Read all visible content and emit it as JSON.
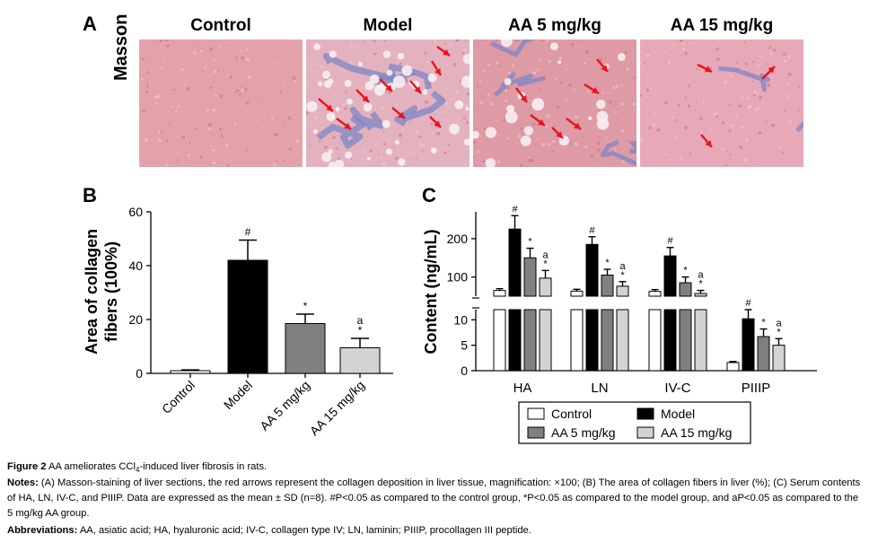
{
  "panel_a": {
    "letter": "A",
    "stain": "Masson",
    "columns": [
      "Control",
      "Model",
      "AA 5 mg/kg",
      "AA 15 mg/kg"
    ],
    "image_colors": [
      "#e3a2aa",
      "#e4b2be",
      "#de9aa5",
      "#e7a9b8"
    ],
    "fiber_color": "#7d85c6",
    "arrow_color": "#e8141c",
    "arrow_counts": [
      0,
      9,
      6,
      3
    ]
  },
  "chart_data": [
    {
      "id": "B",
      "type": "bar",
      "letter": "B",
      "ylabel_lines": [
        "Area of collagen",
        "fibers (100%)"
      ],
      "categories": [
        "Control",
        "Model",
        "AA 5 mg/kg",
        "AA 15 mg/kg"
      ],
      "values": [
        1,
        42,
        18.5,
        9.5
      ],
      "errors": [
        0.3,
        7.5,
        3.5,
        3.5
      ],
      "colors": [
        "#ffffff",
        "#000000",
        "#808080",
        "#d3d3d3"
      ],
      "annotations": [
        [],
        [
          "#"
        ],
        [
          "*"
        ],
        [
          "a",
          "*"
        ]
      ],
      "yticks": [
        0,
        20,
        40,
        60
      ],
      "ylim": [
        0,
        60
      ]
    },
    {
      "id": "C",
      "type": "bar",
      "letter": "C",
      "ylabel": "Content (ng/mL)",
      "categories": [
        "HA",
        "LN",
        "IV-C",
        "PIIIP"
      ],
      "y_axis_break": true,
      "upper_segment": {
        "yticks": [
          100,
          200
        ],
        "ylim": [
          50,
          270
        ]
      },
      "lower_segment": {
        "yticks": [
          0,
          5,
          10
        ],
        "ylim": [
          0,
          12
        ]
      },
      "series": [
        {
          "name": "Control",
          "color": "#ffffff",
          "values": [
            28,
            20,
            16,
            1.6
          ],
          "errors": [
            3,
            2,
            2,
            0.2
          ]
        },
        {
          "name": "Model",
          "color": "#000000",
          "values": [
            225,
            185,
            155,
            10.2
          ],
          "errors": [
            35,
            20,
            22,
            1.8
          ]
        },
        {
          "name": "AA 5 mg/kg",
          "color": "#808080",
          "values": [
            150,
            105,
            85,
            6.7
          ],
          "errors": [
            25,
            15,
            15,
            1.5
          ]
        },
        {
          "name": "AA 15 mg/kg",
          "color": "#d3d3d3",
          "values": [
            97,
            76,
            57,
            5.0
          ],
          "errors": [
            20,
            12,
            8,
            1.3
          ]
        }
      ],
      "annotations": [
        {
          "group": 0,
          "series": 1,
          "marks": [
            "#"
          ]
        },
        {
          "group": 0,
          "series": 2,
          "marks": [
            "*"
          ]
        },
        {
          "group": 0,
          "series": 3,
          "marks": [
            "a",
            "*"
          ]
        },
        {
          "group": 1,
          "series": 1,
          "marks": [
            "#"
          ]
        },
        {
          "group": 1,
          "series": 2,
          "marks": [
            "*"
          ]
        },
        {
          "group": 1,
          "series": 3,
          "marks": [
            "a",
            "*"
          ]
        },
        {
          "group": 2,
          "series": 1,
          "marks": [
            "#"
          ]
        },
        {
          "group": 2,
          "series": 2,
          "marks": [
            "*"
          ]
        },
        {
          "group": 2,
          "series": 3,
          "marks": [
            "a",
            "*"
          ]
        },
        {
          "group": 3,
          "series": 1,
          "marks": [
            "#"
          ]
        },
        {
          "group": 3,
          "series": 2,
          "marks": [
            "*"
          ]
        },
        {
          "group": 3,
          "series": 3,
          "marks": [
            "a",
            "*"
          ]
        }
      ],
      "legend_position": "bottom-center"
    }
  ],
  "caption": {
    "figure_label": "Figure 2",
    "figure_text_pre": " AA ameliorates CCl",
    "figure_text_sub": "4",
    "figure_text_post": "-induced liver fibrosis in rats.",
    "notes_label": "Notes:",
    "notes_text": " (A) Masson-staining of liver sections, the red arrows represent the collagen deposition in liver tissue, magnification: ×100; (B) The area of collagen fibers in liver (%); (C) Serum contents of HA, LN, IV-C, and PIIIP. Data are expressed as the mean ± SD (n=8). #P<0.05 as compared to the control group, *P<0.05 as compared to the model group, and aP<0.05 as compared to the 5 mg/kg AA group.",
    "abbrev_label": "Abbreviations:",
    "abbrev_text": " AA, asiatic acid; HA, hyaluronic acid; IV-C, collagen type IV; LN, laminin; PIIIP, procollagen III peptide."
  }
}
